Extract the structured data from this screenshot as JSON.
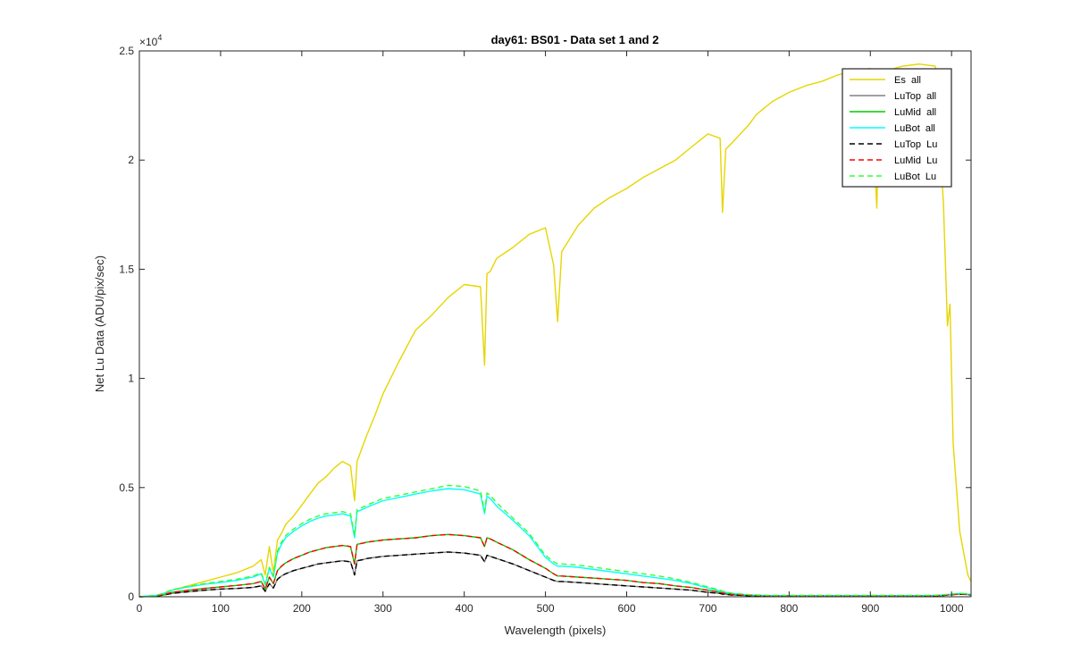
{
  "chart_data": {
    "type": "line",
    "title": "day61: BS01 - Data set 1 and 2",
    "xlabel": "Wavelength (pixels)",
    "ylabel": "Net Lu Data (ADU/pix/sec)",
    "xlim": [
      0,
      1024
    ],
    "ylim": [
      0,
      25000
    ],
    "x_ticks": [
      0,
      100,
      200,
      300,
      400,
      500,
      600,
      700,
      800,
      900,
      1000
    ],
    "y_ticks": [
      0,
      5000,
      10000,
      15000,
      20000,
      25000
    ],
    "y_tick_labels": [
      "0",
      "0.5",
      "1",
      "1.5",
      "2",
      "2.5"
    ],
    "y_exponent_label": "×10",
    "y_exponent_power": "4",
    "grid": false,
    "legend_position": "top-right",
    "x": [
      0,
      20,
      30,
      40,
      60,
      80,
      100,
      120,
      140,
      150,
      155,
      160,
      165,
      170,
      175,
      180,
      190,
      200,
      210,
      220,
      230,
      240,
      250,
      260,
      265,
      268,
      275,
      280,
      290,
      300,
      320,
      340,
      360,
      380,
      400,
      420,
      425,
      428,
      432,
      440,
      460,
      480,
      500,
      510,
      515,
      520,
      540,
      560,
      580,
      600,
      620,
      640,
      660,
      680,
      700,
      715,
      718,
      722,
      730,
      750,
      760,
      780,
      800,
      820,
      840,
      860,
      880,
      900,
      908,
      912,
      920,
      940,
      960,
      980,
      990,
      995,
      998,
      1002,
      1010,
      1020,
      1024
    ],
    "series": [
      {
        "name": "Es  all",
        "color": "#e6d600",
        "dash": "solid",
        "values": [
          0,
          50,
          150,
          300,
          500,
          700,
          900,
          1100,
          1400,
          1700,
          1000,
          2300,
          1100,
          2600,
          2900,
          3300,
          3700,
          4200,
          4700,
          5200,
          5500,
          5900,
          6200,
          6000,
          4400,
          6200,
          6900,
          7400,
          8300,
          9300,
          10800,
          12200,
          12900,
          13700,
          14300,
          14200,
          10600,
          14800,
          14900,
          15500,
          16000,
          16600,
          16900,
          15200,
          12600,
          15800,
          17000,
          17800,
          18300,
          18700,
          19200,
          19600,
          20000,
          20600,
          21200,
          21000,
          17600,
          20500,
          20800,
          21600,
          22100,
          22700,
          23100,
          23400,
          23600,
          23900,
          24100,
          24200,
          17800,
          24000,
          24100,
          24300,
          24400,
          24300,
          18000,
          12400,
          13400,
          7000,
          3000,
          1000,
          700
        ]
      },
      {
        "name": "LuTop  all",
        "color": "#808080",
        "dash": "solid",
        "values": [
          0,
          30,
          80,
          150,
          230,
          300,
          350,
          380,
          430,
          500,
          250,
          600,
          400,
          800,
          950,
          1050,
          1200,
          1300,
          1400,
          1500,
          1550,
          1600,
          1650,
          1600,
          1000,
          1650,
          1700,
          1750,
          1800,
          1850,
          1900,
          1950,
          2000,
          2050,
          2000,
          1900,
          1600,
          1900,
          1850,
          1750,
          1500,
          1200,
          900,
          750,
          700,
          700,
          650,
          600,
          550,
          500,
          450,
          400,
          350,
          300,
          200,
          150,
          120,
          110,
          80,
          50,
          40,
          30,
          30,
          30,
          30,
          30,
          30,
          30,
          30,
          30,
          30,
          30,
          30,
          40,
          60,
          80,
          90,
          100,
          120,
          100,
          80
        ]
      },
      {
        "name": "LuMid  all",
        "color": "#00cc00",
        "dash": "solid",
        "values": [
          0,
          40,
          100,
          200,
          300,
          380,
          450,
          520,
          600,
          700,
          350,
          900,
          600,
          1200,
          1400,
          1550,
          1750,
          1900,
          2050,
          2150,
          2250,
          2300,
          2350,
          2300,
          1500,
          2400,
          2450,
          2500,
          2550,
          2600,
          2650,
          2700,
          2800,
          2850,
          2800,
          2700,
          2300,
          2700,
          2650,
          2500,
          2150,
          1700,
          1300,
          1050,
          950,
          950,
          900,
          850,
          800,
          750,
          650,
          600,
          500,
          420,
          300,
          200,
          170,
          150,
          110,
          70,
          60,
          40,
          40,
          40,
          40,
          40,
          40,
          40,
          40,
          40,
          40,
          40,
          40,
          50,
          70,
          90,
          100,
          110,
          130,
          110,
          90
        ]
      },
      {
        "name": "LuBot  all",
        "color": "#00ffff",
        "dash": "solid",
        "values": [
          0,
          60,
          150,
          300,
          450,
          570,
          650,
          750,
          900,
          1050,
          550,
          1300,
          900,
          2000,
          2400,
          2700,
          3000,
          3250,
          3450,
          3600,
          3700,
          3750,
          3800,
          3700,
          2700,
          3900,
          4000,
          4100,
          4250,
          4400,
          4550,
          4700,
          4850,
          4950,
          4900,
          4700,
          3800,
          4600,
          4500,
          4150,
          3500,
          2800,
          1800,
          1500,
          1400,
          1400,
          1350,
          1250,
          1150,
          1050,
          950,
          850,
          750,
          600,
          400,
          270,
          230,
          200,
          150,
          90,
          70,
          50,
          50,
          50,
          50,
          50,
          50,
          50,
          50,
          50,
          50,
          50,
          50,
          60,
          80,
          100,
          110,
          120,
          150,
          120,
          100
        ]
      },
      {
        "name": "LuTop  Lu",
        "color": "#000000",
        "dash": "dashed",
        "values": [
          0,
          30,
          80,
          150,
          230,
          300,
          350,
          380,
          430,
          500,
          250,
          600,
          400,
          800,
          950,
          1050,
          1200,
          1300,
          1400,
          1500,
          1550,
          1600,
          1650,
          1600,
          1000,
          1650,
          1700,
          1750,
          1800,
          1850,
          1900,
          1950,
          2000,
          2050,
          2000,
          1900,
          1600,
          1900,
          1850,
          1750,
          1500,
          1200,
          900,
          750,
          700,
          700,
          650,
          600,
          550,
          500,
          450,
          400,
          350,
          300,
          200,
          150,
          120,
          110,
          80,
          50,
          40,
          30,
          30,
          30,
          30,
          30,
          30,
          30,
          30,
          30,
          30,
          30,
          30,
          40,
          60,
          80,
          90,
          100,
          120,
          100,
          80
        ]
      },
      {
        "name": "LuMid  Lu",
        "color": "#ff0000",
        "dash": "dashed",
        "values": [
          0,
          40,
          100,
          200,
          300,
          380,
          450,
          520,
          600,
          700,
          350,
          900,
          600,
          1200,
          1400,
          1550,
          1750,
          1900,
          2050,
          2150,
          2250,
          2300,
          2350,
          2300,
          1500,
          2400,
          2450,
          2500,
          2550,
          2600,
          2650,
          2700,
          2800,
          2850,
          2800,
          2700,
          2300,
          2700,
          2650,
          2500,
          2150,
          1700,
          1300,
          1050,
          950,
          950,
          900,
          850,
          800,
          750,
          650,
          600,
          500,
          420,
          300,
          200,
          170,
          150,
          110,
          70,
          60,
          40,
          40,
          40,
          40,
          40,
          40,
          40,
          40,
          40,
          40,
          40,
          40,
          50,
          70,
          90,
          100,
          110,
          130,
          110,
          90
        ]
      },
      {
        "name": "LuBot  Lu",
        "color": "#33ff33",
        "dash": "dashed",
        "values": [
          0,
          60,
          160,
          320,
          480,
          600,
          700,
          800,
          950,
          1100,
          580,
          1350,
          950,
          2100,
          2500,
          2800,
          3100,
          3350,
          3550,
          3700,
          3800,
          3850,
          3900,
          3800,
          2800,
          4000,
          4100,
          4200,
          4350,
          4500,
          4650,
          4800,
          4950,
          5100,
          5050,
          4850,
          3900,
          4750,
          4650,
          4300,
          3600,
          2900,
          1900,
          1600,
          1500,
          1500,
          1450,
          1350,
          1250,
          1150,
          1050,
          950,
          820,
          650,
          450,
          300,
          250,
          220,
          160,
          100,
          80,
          60,
          60,
          60,
          60,
          60,
          60,
          60,
          60,
          60,
          60,
          60,
          60,
          70,
          90,
          110,
          120,
          130,
          160,
          130,
          110
        ]
      }
    ]
  }
}
